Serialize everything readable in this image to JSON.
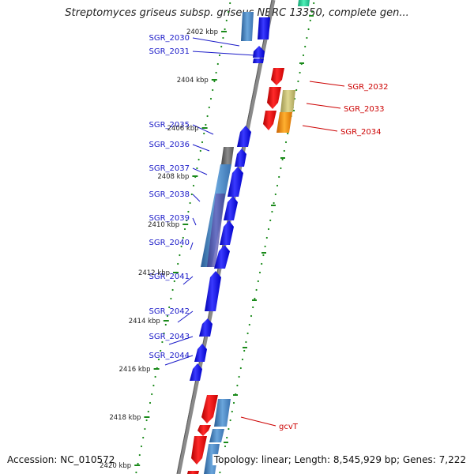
{
  "title": "Streptomyces griseus subsp. griseus NBRC 13350, complete gen...",
  "footer": {
    "accession": "Accession: NC_010572",
    "topology": "Topology: linear; Length: 8,545,929 bp; Genes: 7,222"
  },
  "colors": {
    "forward_gene": "#1010e8",
    "reverse_gene": "#e80000",
    "backbone": "#8a8a8a",
    "tick": "#1a8a1a",
    "forward_label": "#1a1ac8",
    "reverse_label": "#cc0000"
  },
  "kbp_ticks": [
    {
      "label": "2402 kbp",
      "kbp": 2402
    },
    {
      "label": "2404 kbp",
      "kbp": 2404
    },
    {
      "label": "2406 kbp",
      "kbp": 2406
    },
    {
      "label": "2408 kbp",
      "kbp": 2408
    },
    {
      "label": "2410 kbp",
      "kbp": 2410
    },
    {
      "label": "2412 kbp",
      "kbp": 2412
    },
    {
      "label": "2414 kbp",
      "kbp": 2414
    },
    {
      "label": "2416 kbp",
      "kbp": 2416
    },
    {
      "label": "2418 kbp",
      "kbp": 2418
    },
    {
      "label": "2420 kbp",
      "kbp": 2420
    }
  ],
  "forward_labels": [
    "SGR_2030",
    "SGR_2031",
    "SGR_2035",
    "SGR_2036",
    "SGR_2037",
    "SGR_2038",
    "SGR_2039",
    "SGR_2040",
    "SGR_2041",
    "SGR_2042",
    "SGR_2043",
    "SGR_2044"
  ],
  "reverse_labels": [
    "SGR_2032",
    "SGR_2033",
    "SGR_2034",
    "gcvT"
  ]
}
